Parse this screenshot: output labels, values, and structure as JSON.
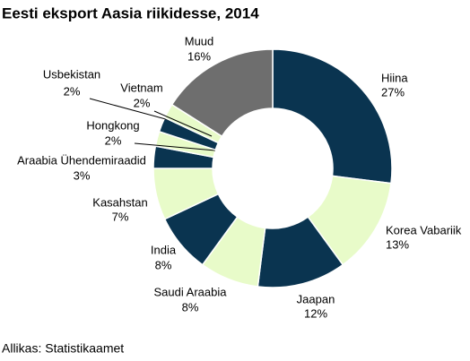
{
  "chart_data": {
    "type": "donut",
    "title": "Eesti eksport Aasia riikidesse, 2014",
    "categories": [
      "Hiina",
      "Korea Vabariik",
      "Jaapan",
      "Saudi Araabia",
      "India",
      "Kasahstan",
      "Araabia Ühendemiraadid",
      "Hongkong",
      "Usbekistan",
      "Vietnam",
      "Muud"
    ],
    "values": [
      27,
      13,
      12,
      8,
      8,
      7,
      3,
      2,
      2,
      2,
      16
    ],
    "value_labels": [
      "27%",
      "13%",
      "12%",
      "8%",
      "8%",
      "7%",
      "3%",
      "2%",
      "2%",
      "2%",
      "16%"
    ],
    "colors": [
      "#0a3450",
      "#e8fbc9",
      "#0a3450",
      "#e8fbc9",
      "#0a3450",
      "#e8fbc9",
      "#0a3450",
      "#e8fbc9",
      "#0a3450",
      "#e8fbc9",
      "#6e6e6e"
    ],
    "source": "Allikas: Statistikaamet"
  }
}
